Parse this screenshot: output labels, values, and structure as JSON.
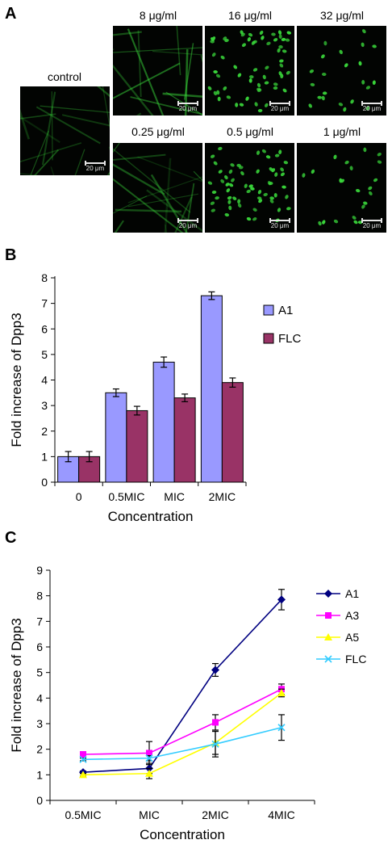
{
  "panel_a": {
    "letter": "A",
    "images": [
      {
        "id": "control",
        "label": "control",
        "scale": "20 μm",
        "style": "hyphae",
        "brightness": 0.55
      },
      {
        "id": "8",
        "label": "8 μg/ml",
        "scale": "20 μm",
        "style": "hyphae",
        "brightness": 0.75
      },
      {
        "id": "16",
        "label": "16 μg/ml",
        "scale": "20 μm",
        "style": "cells",
        "brightness": 1.0
      },
      {
        "id": "32",
        "label": "32 μg/ml",
        "scale": "20 μm",
        "style": "cells-sparse",
        "brightness": 1.0
      },
      {
        "id": "0.25",
        "label": "0.25 μg/ml",
        "scale": "20 μm",
        "style": "hyphae",
        "brightness": 0.6
      },
      {
        "id": "0.5",
        "label": "0.5 μg/ml",
        "scale": "20 μm",
        "style": "cells",
        "brightness": 0.95
      },
      {
        "id": "1",
        "label": "1 μg/ml",
        "scale": "20 μm",
        "style": "cells-sparse",
        "brightness": 1.0
      }
    ],
    "fluor_color": "#39d63a"
  },
  "chart_data": [
    {
      "panel": "B",
      "type": "bar",
      "categories": [
        "0",
        "0.5MIC",
        "MIC",
        "2MIC"
      ],
      "series": [
        {
          "name": "A1",
          "values": [
            1.0,
            3.5,
            4.7,
            7.3
          ],
          "errors": [
            0.2,
            0.15,
            0.2,
            0.15
          ],
          "color": "#9999ff"
        },
        {
          "name": "FLC",
          "values": [
            1.0,
            2.8,
            3.3,
            3.9
          ],
          "errors": [
            0.2,
            0.17,
            0.15,
            0.18
          ],
          "color": "#993366"
        }
      ],
      "xlabel": "Concentration",
      "ylabel": "Fold increase of Dpp3",
      "ylim": [
        0,
        8
      ],
      "yticks": [
        0,
        1,
        2,
        3,
        4,
        5,
        6,
        7,
        8
      ],
      "grid": false,
      "legend_position": "top-right"
    },
    {
      "panel": "C",
      "type": "line",
      "categories": [
        "0.5MIC",
        "MIC",
        "2MIC",
        "4MIC"
      ],
      "series": [
        {
          "name": "A1",
          "values": [
            1.1,
            1.25,
            5.1,
            7.85
          ],
          "errors": [
            0.05,
            0.2,
            0.25,
            0.4
          ],
          "color": "#000080",
          "marker": "diamond"
        },
        {
          "name": "A3",
          "values": [
            1.8,
            1.85,
            3.05,
            4.35
          ],
          "errors": [
            0.05,
            0.45,
            0.3,
            0.2
          ],
          "color": "#ff00ff",
          "marker": "square"
        },
        {
          "name": "A5",
          "values": [
            1.0,
            1.05,
            2.25,
            4.2
          ],
          "errors": [
            0.05,
            0.2,
            0.45,
            0.15
          ],
          "color": "#ffff00",
          "marker": "triangle"
        },
        {
          "name": "FLC",
          "values": [
            1.6,
            1.65,
            2.2,
            2.85
          ],
          "errors": [
            0.05,
            0.1,
            0.5,
            0.5
          ],
          "color": "#33ccff",
          "marker": "x"
        }
      ],
      "xlabel": "Concentration",
      "ylabel": "Fold increase of Dpp3",
      "ylim": [
        0,
        9
      ],
      "yticks": [
        0,
        1,
        2,
        3,
        4,
        5,
        6,
        7,
        8,
        9
      ],
      "grid": false,
      "legend_position": "top-right"
    }
  ],
  "panel_letters": {
    "b": "B",
    "c": "C"
  }
}
